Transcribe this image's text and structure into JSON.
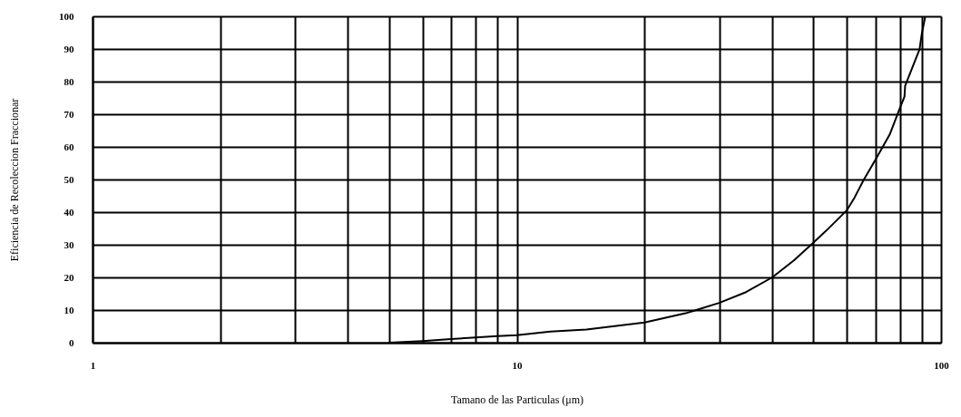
{
  "chart_data": {
    "type": "line",
    "xlabel": "Tamano de las Particulas (μm)",
    "ylabel": "Eficiencia de Recoleccion Fraccionar",
    "x": [
      5,
      6,
      7,
      8,
      9,
      10,
      12,
      14.6,
      20,
      25,
      30,
      34.7,
      40,
      45,
      50,
      54.4,
      60,
      62.5,
      65.8,
      70,
      75.7,
      80,
      82,
      82.3,
      89,
      90,
      91.8
    ],
    "series": [
      {
        "color": "#000000",
        "values": [
          0,
          0.5,
          1.1,
          1.6,
          2.0,
          2.3,
          3.4,
          4.0,
          6.2,
          9.0,
          12.2,
          15.5,
          20.0,
          25.2,
          30.6,
          35.1,
          40.6,
          44.4,
          50.0,
          56.0,
          63.8,
          71.9,
          75.4,
          78.7,
          89.9,
          94.3,
          100
        ]
      }
    ],
    "xlim": [
      1,
      100
    ],
    "ylim": [
      0,
      100
    ],
    "xticks": [
      1,
      {
        "value": 2,
        "label": null
      },
      {
        "value": 3,
        "label": null
      },
      {
        "value": 4,
        "label": null
      },
      {
        "value": 5,
        "label": null
      },
      {
        "value": 6,
        "label": null
      },
      {
        "value": 7,
        "label": null
      },
      {
        "value": 8,
        "label": null
      },
      {
        "value": 9,
        "label": null
      },
      10,
      {
        "value": 20,
        "label": null
      },
      {
        "value": 30,
        "label": null
      },
      {
        "value": 40,
        "label": null
      },
      {
        "value": 50,
        "label": null
      },
      {
        "value": 60,
        "label": null
      },
      {
        "value": 70,
        "label": null
      },
      {
        "value": 80,
        "label": null
      },
      {
        "value": 90,
        "label": null
      },
      100
    ],
    "yticks": [
      0,
      10,
      20,
      30,
      40,
      50,
      60,
      70,
      80,
      90,
      100
    ],
    "log": "x",
    "grid": true,
    "marker": "none",
    "line_style": "solid"
  }
}
